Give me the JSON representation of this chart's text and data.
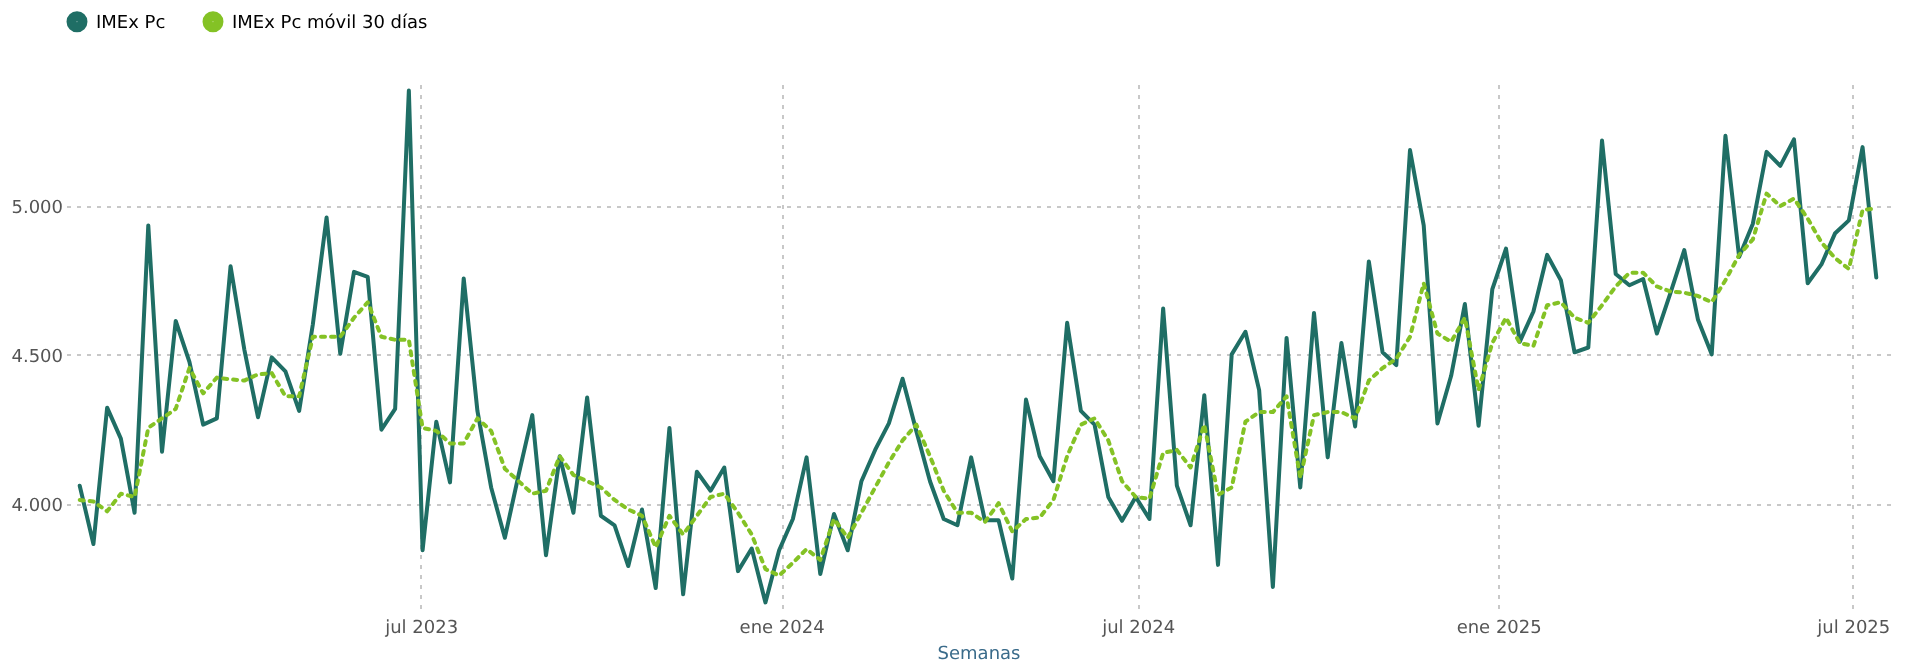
{
  "chart_data": {
    "type": "line",
    "xlabel": "Semanas",
    "x": [
      "2023-01-08",
      "2023-01-15",
      "2023-01-22",
      "2023-01-29",
      "2023-02-05",
      "2023-02-12",
      "2023-02-19",
      "2023-02-26",
      "2023-03-05",
      "2023-03-12",
      "2023-03-19",
      "2023-03-26",
      "2023-04-02",
      "2023-04-09",
      "2023-04-16",
      "2023-04-23",
      "2023-04-30",
      "2023-05-07",
      "2023-05-14",
      "2023-05-21",
      "2023-05-28",
      "2023-06-04",
      "2023-06-11",
      "2023-06-18",
      "2023-06-25",
      "2023-07-02",
      "2023-07-09",
      "2023-07-16",
      "2023-07-23",
      "2023-07-30",
      "2023-08-06",
      "2023-08-13",
      "2023-08-20",
      "2023-08-27",
      "2023-09-03",
      "2023-09-10",
      "2023-09-17",
      "2023-09-24",
      "2023-10-01",
      "2023-10-08",
      "2023-10-15",
      "2023-10-22",
      "2023-10-29",
      "2023-11-05",
      "2023-11-12",
      "2023-11-19",
      "2023-11-26",
      "2023-12-03",
      "2023-12-10",
      "2023-12-17",
      "2023-12-24",
      "2023-12-31",
      "2024-01-07",
      "2024-01-14",
      "2024-01-21",
      "2024-01-28",
      "2024-02-04",
      "2024-02-11",
      "2024-02-18",
      "2024-02-25",
      "2024-03-03",
      "2024-03-10",
      "2024-03-17",
      "2024-03-24",
      "2024-03-31",
      "2024-04-07",
      "2024-04-14",
      "2024-04-21",
      "2024-04-28",
      "2024-05-05",
      "2024-05-12",
      "2024-05-19",
      "2024-05-26",
      "2024-06-02",
      "2024-06-09",
      "2024-06-16",
      "2024-06-23",
      "2024-06-30",
      "2024-07-07",
      "2024-07-14",
      "2024-07-21",
      "2024-07-28",
      "2024-08-04",
      "2024-08-11",
      "2024-08-18",
      "2024-08-25",
      "2024-09-01",
      "2024-09-08",
      "2024-09-15",
      "2024-09-22",
      "2024-09-29",
      "2024-10-06",
      "2024-10-13",
      "2024-10-20",
      "2024-10-27",
      "2024-11-03",
      "2024-11-10",
      "2024-11-17",
      "2024-11-24",
      "2024-12-01",
      "2024-12-08",
      "2024-12-15",
      "2024-12-22",
      "2024-12-29",
      "2025-01-05",
      "2025-01-12",
      "2025-01-19",
      "2025-01-26",
      "2025-02-02",
      "2025-02-09",
      "2025-02-16",
      "2025-02-23",
      "2025-03-02",
      "2025-03-09",
      "2025-03-16",
      "2025-03-23",
      "2025-03-30",
      "2025-04-06",
      "2025-04-13",
      "2025-04-20",
      "2025-04-27",
      "2025-05-04",
      "2025-05-11",
      "2025-05-18",
      "2025-05-25",
      "2025-06-01",
      "2025-06-08",
      "2025-06-15",
      "2025-06-22",
      "2025-06-29",
      "2025-07-06",
      "2025-07-13"
    ],
    "xlim": [
      "2023-01-01",
      "2025-07-20"
    ],
    "xticks": [
      {
        "value": "2023-07-01",
        "label": "jul 2023"
      },
      {
        "value": "2024-01-01",
        "label": "ene 2024"
      },
      {
        "value": "2024-07-01",
        "label": "jul 2024"
      },
      {
        "value": "2025-01-01",
        "label": "ene 2025"
      },
      {
        "value": "2025-07-01",
        "label": "jul 2025"
      }
    ],
    "ylim": [
      3630,
      5410
    ],
    "yticks": [
      {
        "value": 4000,
        "label": "4.000"
      },
      {
        "value": 4500,
        "label": "4.500"
      },
      {
        "value": 5000,
        "label": "5.000"
      }
    ],
    "grid": true,
    "legend": "top",
    "marker": "none",
    "series": [
      {
        "name": "IMEx Pc",
        "color": "#1f6e65",
        "line_style": "solid",
        "values": [
          4061,
          3865,
          4323,
          4219,
          3970,
          4935,
          4175,
          4614,
          4477,
          4266,
          4287,
          4798,
          4519,
          4291,
          4492,
          4445,
          4312,
          4603,
          4962,
          4504,
          4779,
          4762,
          4249,
          4319,
          5388,
          3844,
          4276,
          4072,
          4757,
          4312,
          4055,
          3886,
          4097,
          4298,
          3827,
          4160,
          3970,
          4357,
          3960,
          3928,
          3791,
          3981,
          3717,
          4255,
          3696,
          4108,
          4044,
          4122,
          3774,
          3850,
          3669,
          3844,
          3949,
          4156,
          3764,
          3966,
          3844,
          4076,
          4181,
          4270,
          4420,
          4245,
          4076,
          3949,
          3928,
          4156,
          3945,
          3945,
          3749,
          4350,
          4160,
          4076,
          4608,
          4312,
          4266,
          4023,
          3943,
          4023,
          3949,
          4656,
          4061,
          3928,
          4365,
          3795,
          4502,
          4578,
          4382,
          3721,
          4557,
          4055,
          4641,
          4156,
          4540,
          4260,
          4814,
          4509,
          4466,
          5188,
          4935,
          4270,
          4430,
          4671,
          4262,
          4720,
          4857,
          4544,
          4646,
          4836,
          4751,
          4509,
          4525,
          5220,
          4772,
          4734,
          4755,
          4572,
          4709,
          4852,
          4618,
          4502,
          5236,
          4829,
          4941,
          5182,
          5135,
          5224,
          4741,
          4804,
          4909,
          4952,
          5198,
          4760
        ]
      },
      {
        "name": "IMEx Pc móvil 30 días",
        "color": "#84c225",
        "line_style": "dotted",
        "values": [
          4013,
          4008,
          3975,
          4034,
          4023,
          4255,
          4287,
          4319,
          4456,
          4371,
          4424,
          4418,
          4414,
          4435,
          4439,
          4361,
          4361,
          4561,
          4561,
          4561,
          4625,
          4677,
          4561,
          4551,
          4551,
          4255,
          4245,
          4203,
          4203,
          4287,
          4245,
          4118,
          4076,
          4034,
          4044,
          4160,
          4097,
          4076,
          4055,
          4013,
          3981,
          3960,
          3854,
          3960,
          3897,
          3960,
          4023,
          4034,
          3970,
          3897,
          3781,
          3759,
          3802,
          3848,
          3812,
          3949,
          3886,
          3970,
          4055,
          4139,
          4213,
          4266,
          4160,
          4044,
          3970,
          3970,
          3939,
          4002,
          3907,
          3949,
          3954,
          4013,
          4160,
          4266,
          4287,
          4213,
          4076,
          4023,
          4017,
          4171,
          4181,
          4122,
          4266,
          4030,
          4055,
          4276,
          4308,
          4308,
          4361,
          4087,
          4298,
          4308,
          4308,
          4287,
          4414,
          4456,
          4487,
          4561,
          4741,
          4572,
          4544,
          4625,
          4382,
          4540,
          4625,
          4540,
          4530,
          4667,
          4677,
          4625,
          4608,
          4667,
          4730,
          4776,
          4776,
          4730,
          4713,
          4709,
          4698,
          4677,
          4751,
          4836,
          4888,
          5042,
          5000,
          5025,
          4958,
          4878,
          4825,
          4789,
          4987,
          4992
        ]
      }
    ]
  }
}
